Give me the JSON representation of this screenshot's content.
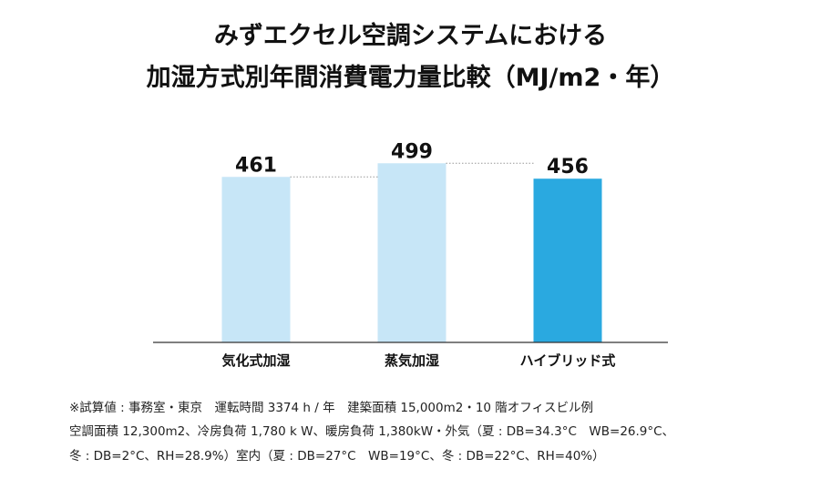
{
  "title": {
    "line1": "みずエクセル空調システムにおける",
    "line2": "加湿方式別年間消費電力量比較（MJ/m2・年）"
  },
  "chart_data": {
    "type": "bar",
    "categories": [
      "気化式加湿",
      "蒸気加湿",
      "ハイブリッド式"
    ],
    "values": [
      461,
      499,
      456
    ],
    "ylim": [
      0,
      520
    ],
    "colors": [
      "#c7e6f7",
      "#c7e6f7",
      "#2aa9e0"
    ],
    "reference_lines": true,
    "grid": false,
    "legend": "none"
  },
  "notes": {
    "line1": "※試算値 : 事務室・東京　運転時間 3374 h / 年　建築面積 15,000m2・10 階オフィスビル例",
    "line2": "空調面積 12,300m2、冷房負荷 1,780 k W、暖房負荷 1,380kW・外気（夏 : DB=34.3°C　WB=26.9°C、",
    "line3": "冬 : DB=2°C、RH=28.9%）室内（夏 : DB=27°C　WB=19°C、冬 : DB=22°C、RH=40%）"
  }
}
